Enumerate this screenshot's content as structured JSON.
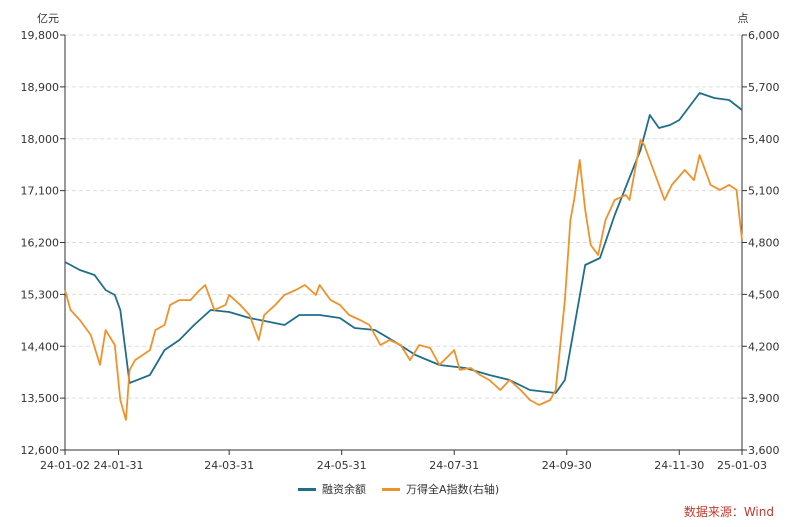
{
  "chart_data": {
    "type": "line",
    "left_axis": {
      "unit": "亿元",
      "range": [
        12600,
        19800
      ],
      "ticks": [
        "12,600",
        "13,500",
        "14,400",
        "15,300",
        "16,200",
        "17,100",
        "18,000",
        "18,900",
        "19,800"
      ]
    },
    "right_axis": {
      "unit": "点",
      "range": [
        3600,
        6000
      ],
      "ticks": [
        "3,600",
        "3,900",
        "4,200",
        "4,500",
        "4,800",
        "5,100",
        "5,400",
        "5,700",
        "6,000"
      ]
    },
    "x_axis": {
      "range": [
        "2024-01-02",
        "2025-01-03"
      ],
      "ticks": [
        {
          "date": "2024-01-02",
          "label": "24-01-02"
        },
        {
          "date": "2024-01-31",
          "label": "24-01-31"
        },
        {
          "date": "2024-03-31",
          "label": "24-03-31"
        },
        {
          "date": "2024-05-31",
          "label": "24-05-31"
        },
        {
          "date": "2024-07-31",
          "label": "24-07-31"
        },
        {
          "date": "2024-09-30",
          "label": "24-09-30"
        },
        {
          "date": "2024-11-30",
          "label": "24-11-30"
        },
        {
          "date": "2025-01-03",
          "label": "25-01-03"
        }
      ]
    },
    "grid": "horizontal dashed",
    "legend_position": "bottom",
    "series": [
      {
        "name": "融资余额",
        "axis": "left",
        "color": "#1f6e8c",
        "points": [
          [
            "2024-01-02",
            15862
          ],
          [
            "2024-01-10",
            15723
          ],
          [
            "2024-01-18",
            15636
          ],
          [
            "2024-01-24",
            15376
          ],
          [
            "2024-01-29",
            15289
          ],
          [
            "2024-02-01",
            15029
          ],
          [
            "2024-02-06",
            13762
          ],
          [
            "2024-02-17",
            13901
          ],
          [
            "2024-02-25",
            14335
          ],
          [
            "2024-03-04",
            14509
          ],
          [
            "2024-03-12",
            14769
          ],
          [
            "2024-03-21",
            15029
          ],
          [
            "2024-03-31",
            14994
          ],
          [
            "2024-04-11",
            14890
          ],
          [
            "2024-04-22",
            14821
          ],
          [
            "2024-04-30",
            14769
          ],
          [
            "2024-05-08",
            14942
          ],
          [
            "2024-05-19",
            14942
          ],
          [
            "2024-05-30",
            14890
          ],
          [
            "2024-06-07",
            14716
          ],
          [
            "2024-06-18",
            14682
          ],
          [
            "2024-06-29",
            14474
          ],
          [
            "2024-07-10",
            14248
          ],
          [
            "2024-07-23",
            14075
          ],
          [
            "2024-08-06",
            14023
          ],
          [
            "2024-08-19",
            13901
          ],
          [
            "2024-08-30",
            13814
          ],
          [
            "2024-09-10",
            13641
          ],
          [
            "2024-09-24",
            13589
          ],
          [
            "2024-09-29",
            13814
          ],
          [
            "2024-10-10",
            15810
          ],
          [
            "2024-10-18",
            15931
          ],
          [
            "2024-10-26",
            16677
          ],
          [
            "2024-11-09",
            17805
          ],
          [
            "2024-11-14",
            18412
          ],
          [
            "2024-11-19",
            18186
          ],
          [
            "2024-11-25",
            18239
          ],
          [
            "2024-11-30",
            18325
          ],
          [
            "2024-12-11",
            18794
          ],
          [
            "2024-12-19",
            18707
          ],
          [
            "2024-12-27",
            18672
          ],
          [
            "2025-01-03",
            18499
          ]
        ]
      },
      {
        "name": "万得全A指数(右轴)",
        "axis": "right",
        "color": "#f0922b",
        "points": [
          [
            "2024-01-02",
            4525
          ],
          [
            "2024-01-05",
            4410
          ],
          [
            "2024-01-10",
            4352
          ],
          [
            "2024-01-16",
            4265
          ],
          [
            "2024-01-21",
            4092
          ],
          [
            "2024-01-24",
            4294
          ],
          [
            "2024-01-29",
            4207
          ],
          [
            "2024-02-01",
            3889
          ],
          [
            "2024-02-04",
            3774
          ],
          [
            "2024-02-06",
            4063
          ],
          [
            "2024-02-09",
            4120
          ],
          [
            "2024-02-17",
            4178
          ],
          [
            "2024-02-20",
            4294
          ],
          [
            "2024-02-25",
            4323
          ],
          [
            "2024-02-28",
            4439
          ],
          [
            "2024-03-04",
            4467
          ],
          [
            "2024-03-10",
            4467
          ],
          [
            "2024-03-15",
            4525
          ],
          [
            "2024-03-18",
            4554
          ],
          [
            "2024-03-23",
            4410
          ],
          [
            "2024-03-29",
            4439
          ],
          [
            "2024-03-31",
            4497
          ],
          [
            "2024-04-06",
            4439
          ],
          [
            "2024-04-11",
            4381
          ],
          [
            "2024-04-16",
            4236
          ],
          [
            "2024-04-19",
            4381
          ],
          [
            "2024-04-25",
            4439
          ],
          [
            "2024-04-30",
            4497
          ],
          [
            "2024-05-06",
            4525
          ],
          [
            "2024-05-11",
            4554
          ],
          [
            "2024-05-17",
            4497
          ],
          [
            "2024-05-19",
            4554
          ],
          [
            "2024-05-25",
            4467
          ],
          [
            "2024-05-30",
            4439
          ],
          [
            "2024-06-04",
            4381
          ],
          [
            "2024-06-10",
            4352
          ],
          [
            "2024-06-15",
            4323
          ],
          [
            "2024-06-21",
            4207
          ],
          [
            "2024-06-26",
            4236
          ],
          [
            "2024-07-02",
            4207
          ],
          [
            "2024-07-07",
            4120
          ],
          [
            "2024-07-12",
            4207
          ],
          [
            "2024-07-18",
            4190
          ],
          [
            "2024-07-23",
            4092
          ],
          [
            "2024-07-31",
            4178
          ],
          [
            "2024-08-03",
            4063
          ],
          [
            "2024-08-09",
            4074
          ],
          [
            "2024-08-14",
            4034
          ],
          [
            "2024-08-19",
            4005
          ],
          [
            "2024-08-25",
            3947
          ],
          [
            "2024-08-30",
            4005
          ],
          [
            "2024-09-05",
            3947
          ],
          [
            "2024-09-10",
            3889
          ],
          [
            "2024-09-15",
            3860
          ],
          [
            "2024-09-21",
            3889
          ],
          [
            "2024-09-24",
            3947
          ],
          [
            "2024-09-29",
            4467
          ],
          [
            "2024-10-02",
            4930
          ],
          [
            "2024-10-04",
            5046
          ],
          [
            "2024-10-07",
            5277
          ],
          [
            "2024-10-10",
            4988
          ],
          [
            "2024-10-13",
            4786
          ],
          [
            "2024-10-17",
            4728
          ],
          [
            "2024-10-21",
            4930
          ],
          [
            "2024-10-26",
            5046
          ],
          [
            "2024-11-01",
            5075
          ],
          [
            "2024-11-03",
            5046
          ],
          [
            "2024-11-09",
            5393
          ],
          [
            "2024-11-11",
            5364
          ],
          [
            "2024-11-17",
            5190
          ],
          [
            "2024-11-22",
            5046
          ],
          [
            "2024-11-26",
            5133
          ],
          [
            "2024-12-03",
            5219
          ],
          [
            "2024-12-08",
            5161
          ],
          [
            "2024-12-11",
            5306
          ],
          [
            "2024-12-17",
            5133
          ],
          [
            "2024-12-22",
            5104
          ],
          [
            "2024-12-27",
            5133
          ],
          [
            "2024-12-31",
            5104
          ],
          [
            "2025-01-03",
            4815
          ]
        ]
      }
    ]
  },
  "source": "数据来源：Wind"
}
